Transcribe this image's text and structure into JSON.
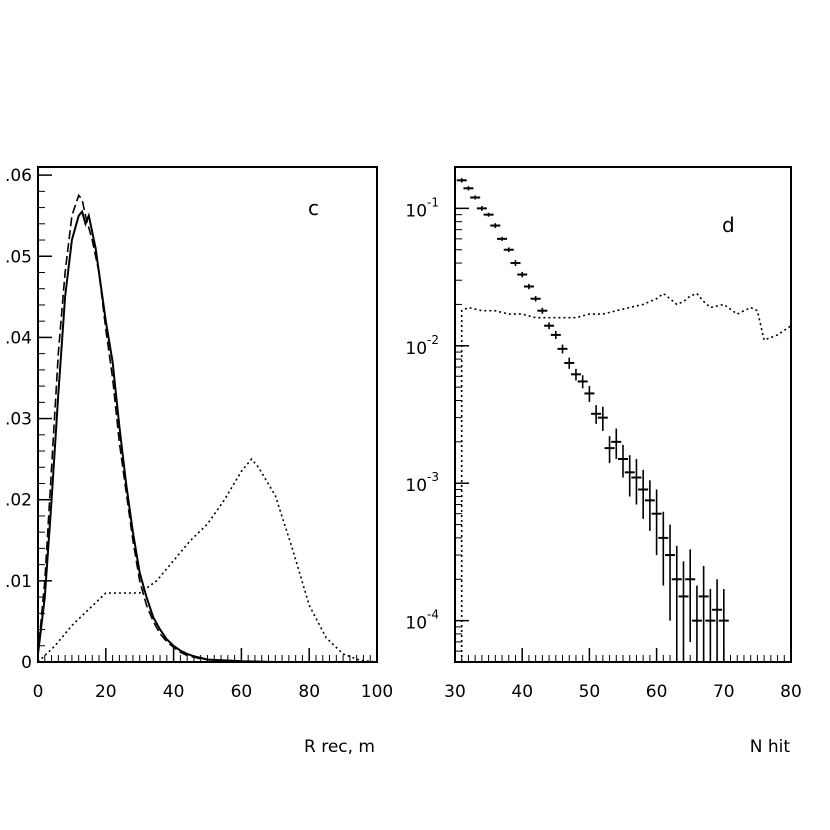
{
  "chart_data": [
    {
      "panel": "c",
      "type": "line",
      "xlabel": "R rec, m",
      "ylabel": "",
      "xlim": [
        0,
        100
      ],
      "ylim": [
        0,
        0.061
      ],
      "x_ticks": [
        0,
        20,
        40,
        60,
        80,
        100
      ],
      "x_tick_labels": [
        "0",
        "20",
        "40",
        "60",
        "80",
        "100"
      ],
      "y_ticks": [
        0,
        0.01,
        0.02,
        0.03,
        0.04,
        0.05,
        0.06
      ],
      "y_tick_labels": [
        "0",
        ".01",
        ".02",
        ".03",
        ".04",
        ".05",
        ".06"
      ],
      "series": [
        {
          "style": "solid",
          "x": [
            0,
            2,
            4,
            6,
            8,
            10,
            12,
            13,
            14,
            15,
            16,
            17,
            18,
            20,
            22,
            24,
            26,
            28,
            30,
            32,
            34,
            36,
            38,
            40,
            42,
            44,
            46,
            48,
            50,
            55,
            60,
            70,
            80,
            100
          ],
          "y": [
            0.001,
            0.008,
            0.02,
            0.033,
            0.045,
            0.052,
            0.055,
            0.0555,
            0.054,
            0.055,
            0.053,
            0.051,
            0.048,
            0.042,
            0.037,
            0.029,
            0.022,
            0.016,
            0.011,
            0.008,
            0.0055,
            0.004,
            0.0028,
            0.002,
            0.0014,
            0.001,
            0.0007,
            0.0005,
            0.0003,
            0.0002,
            0.0001,
            0.0,
            0.0,
            0.0
          ]
        },
        {
          "style": "dashed",
          "x": [
            0,
            2,
            4,
            6,
            8,
            10,
            12,
            13,
            14,
            16,
            18,
            20,
            22,
            24,
            26,
            28,
            30,
            32,
            34,
            36,
            38,
            40,
            42,
            44,
            46,
            48,
            50,
            55,
            60,
            70,
            80,
            100
          ],
          "y": [
            0.001,
            0.01,
            0.024,
            0.038,
            0.048,
            0.055,
            0.0575,
            0.057,
            0.055,
            0.052,
            0.048,
            0.041,
            0.035,
            0.027,
            0.021,
            0.015,
            0.01,
            0.007,
            0.005,
            0.0035,
            0.0025,
            0.0018,
            0.0012,
            0.0008,
            0.0006,
            0.0004,
            0.0003,
            0.0002,
            0.0001,
            0.0,
            0.0,
            0.0
          ]
        },
        {
          "style": "dotted",
          "x": [
            0,
            5,
            10,
            15,
            20,
            25,
            30,
            35,
            40,
            45,
            50,
            55,
            60,
            63,
            65,
            70,
            75,
            80,
            85,
            90,
            95,
            100
          ],
          "y": [
            0.0,
            0.002,
            0.0045,
            0.0065,
            0.0085,
            0.0085,
            0.0085,
            0.01,
            0.0125,
            0.015,
            0.017,
            0.02,
            0.0235,
            0.025,
            0.024,
            0.0205,
            0.014,
            0.007,
            0.003,
            0.001,
            0.0002,
            0.0
          ]
        }
      ]
    },
    {
      "panel": "d",
      "type": "scatter",
      "xlabel": "N hit",
      "ylabel": "",
      "xlim": [
        30,
        80
      ],
      "ylim": [
        5e-05,
        0.2
      ],
      "y_scale": "log",
      "x_ticks": [
        30,
        40,
        50,
        60,
        70,
        80
      ],
      "x_tick_labels": [
        "30",
        "40",
        "50",
        "60",
        "70",
        "80"
      ],
      "y_ticks": [
        0.0001,
        0.001,
        0.01,
        0.1
      ],
      "y_tick_labels": [
        {
          "base": "10",
          "power": "-4"
        },
        {
          "base": "10",
          "power": "-3"
        },
        {
          "base": "10",
          "power": "-2"
        },
        {
          "base": "10",
          "power": "-1"
        }
      ],
      "series": [
        {
          "style": "points-with-error-bars",
          "x": [
            31,
            32,
            33,
            34,
            35,
            36,
            37,
            38,
            39,
            40,
            41,
            42,
            43,
            44,
            45,
            46,
            47,
            48,
            49,
            50,
            51,
            52,
            53,
            54,
            55,
            56,
            57,
            58,
            59,
            60,
            61,
            62,
            63,
            64,
            65,
            66,
            67,
            68,
            69,
            70
          ],
          "y": [
            0.16,
            0.14,
            0.12,
            0.1,
            0.09,
            0.075,
            0.06,
            0.05,
            0.04,
            0.033,
            0.027,
            0.022,
            0.018,
            0.014,
            0.012,
            0.0095,
            0.0075,
            0.0062,
            0.0055,
            0.0045,
            0.0032,
            0.003,
            0.0018,
            0.002,
            0.0015,
            0.0012,
            0.0011,
            0.0009,
            0.00075,
            0.0006,
            0.0004,
            0.0003,
            0.0002,
            0.00015,
            0.0002,
            0.0001,
            0.00015,
            0.0001,
            0.00012,
            0.0001
          ],
          "err": [
            0.006,
            0.005,
            0.004,
            0.004,
            0.003,
            0.003,
            0.002,
            0.002,
            0.002,
            0.0015,
            0.0012,
            0.001,
            0.0009,
            0.0008,
            0.0008,
            0.0007,
            0.0007,
            0.0006,
            0.0006,
            0.0006,
            0.0005,
            0.0006,
            0.0004,
            0.0005,
            0.0004,
            0.0004,
            0.0004,
            0.00035,
            0.0003,
            0.0003,
            0.00022,
            0.0002,
            0.00015,
            0.00012,
            0.00013,
            8e-05,
            0.0001,
            7e-05,
            8e-05,
            7e-05
          ]
        },
        {
          "style": "dotted-histogram",
          "x": [
            31,
            32,
            34,
            36,
            38,
            40,
            42,
            44,
            46,
            48,
            50,
            52,
            54,
            56,
            58,
            60,
            61,
            62,
            63,
            64,
            65,
            66,
            67,
            68,
            70,
            72,
            74,
            75,
            76,
            78,
            80
          ],
          "y": [
            0.018,
            0.019,
            0.018,
            0.018,
            0.017,
            0.017,
            0.016,
            0.016,
            0.016,
            0.016,
            0.017,
            0.017,
            0.018,
            0.019,
            0.02,
            0.022,
            0.024,
            0.022,
            0.02,
            0.021,
            0.023,
            0.024,
            0.021,
            0.019,
            0.02,
            0.017,
            0.019,
            0.018,
            0.011,
            0.012,
            0.014
          ]
        }
      ]
    }
  ]
}
